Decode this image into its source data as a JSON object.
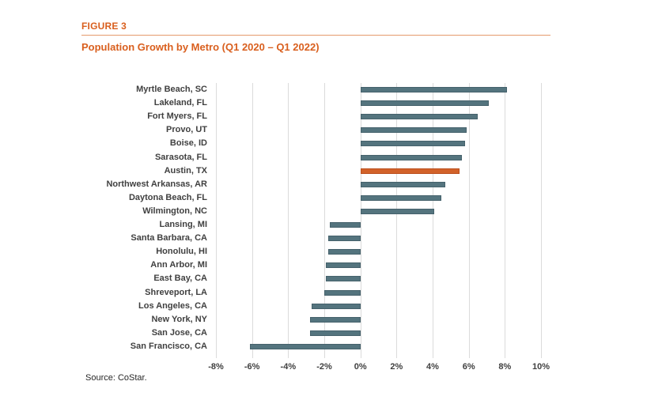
{
  "header": {
    "figure_label": "FIGURE 3",
    "title": "Population Growth by Metro (Q1 2020 – Q1 2022)"
  },
  "footer": {
    "source": "Source: CoStar."
  },
  "colors": {
    "accent_orange": "#D95F1E",
    "bar_teal": "#54747E",
    "bar_highlight_orange": "#D2622A",
    "gridline_gray": "#DBDBDB",
    "label_gray": "#404040"
  },
  "chart_data": {
    "type": "bar",
    "orientation": "horizontal",
    "title": "Population Growth by Metro (Q1 2020 – Q1 2022)",
    "categories": [
      "Myrtle Beach, SC",
      "Lakeland, FL",
      "Fort Myers, FL",
      "Provo, UT",
      "Boise, ID",
      "Sarasota, FL",
      "Austin, TX",
      "Northwest Arkansas, AR",
      "Daytona Beach, FL",
      "Wilmington, NC",
      "Lansing, MI",
      "Santa Barbara, CA",
      "Honolulu, HI",
      "Ann Arbor, MI",
      "East Bay, CA",
      "Shreveport, LA",
      "Los Angeles, CA",
      "New York, NY",
      "San Jose, CA",
      "San Francisco, CA"
    ],
    "values": [
      8.1,
      7.1,
      6.5,
      5.9,
      5.8,
      5.6,
      5.5,
      4.7,
      4.5,
      4.1,
      -1.7,
      -1.8,
      -1.8,
      -1.9,
      -1.9,
      -2.0,
      -2.7,
      -2.8,
      -2.8,
      -6.1
    ],
    "unit": "%",
    "highlight_category": "Austin, TX",
    "x_tick_labels": [
      "-8%",
      "-6%",
      "-4%",
      "-2%",
      "0%",
      "2%",
      "4%",
      "6%",
      "8%",
      "10%"
    ],
    "xlim": [
      -8,
      10
    ],
    "grid": "vertical",
    "legend": "none"
  }
}
